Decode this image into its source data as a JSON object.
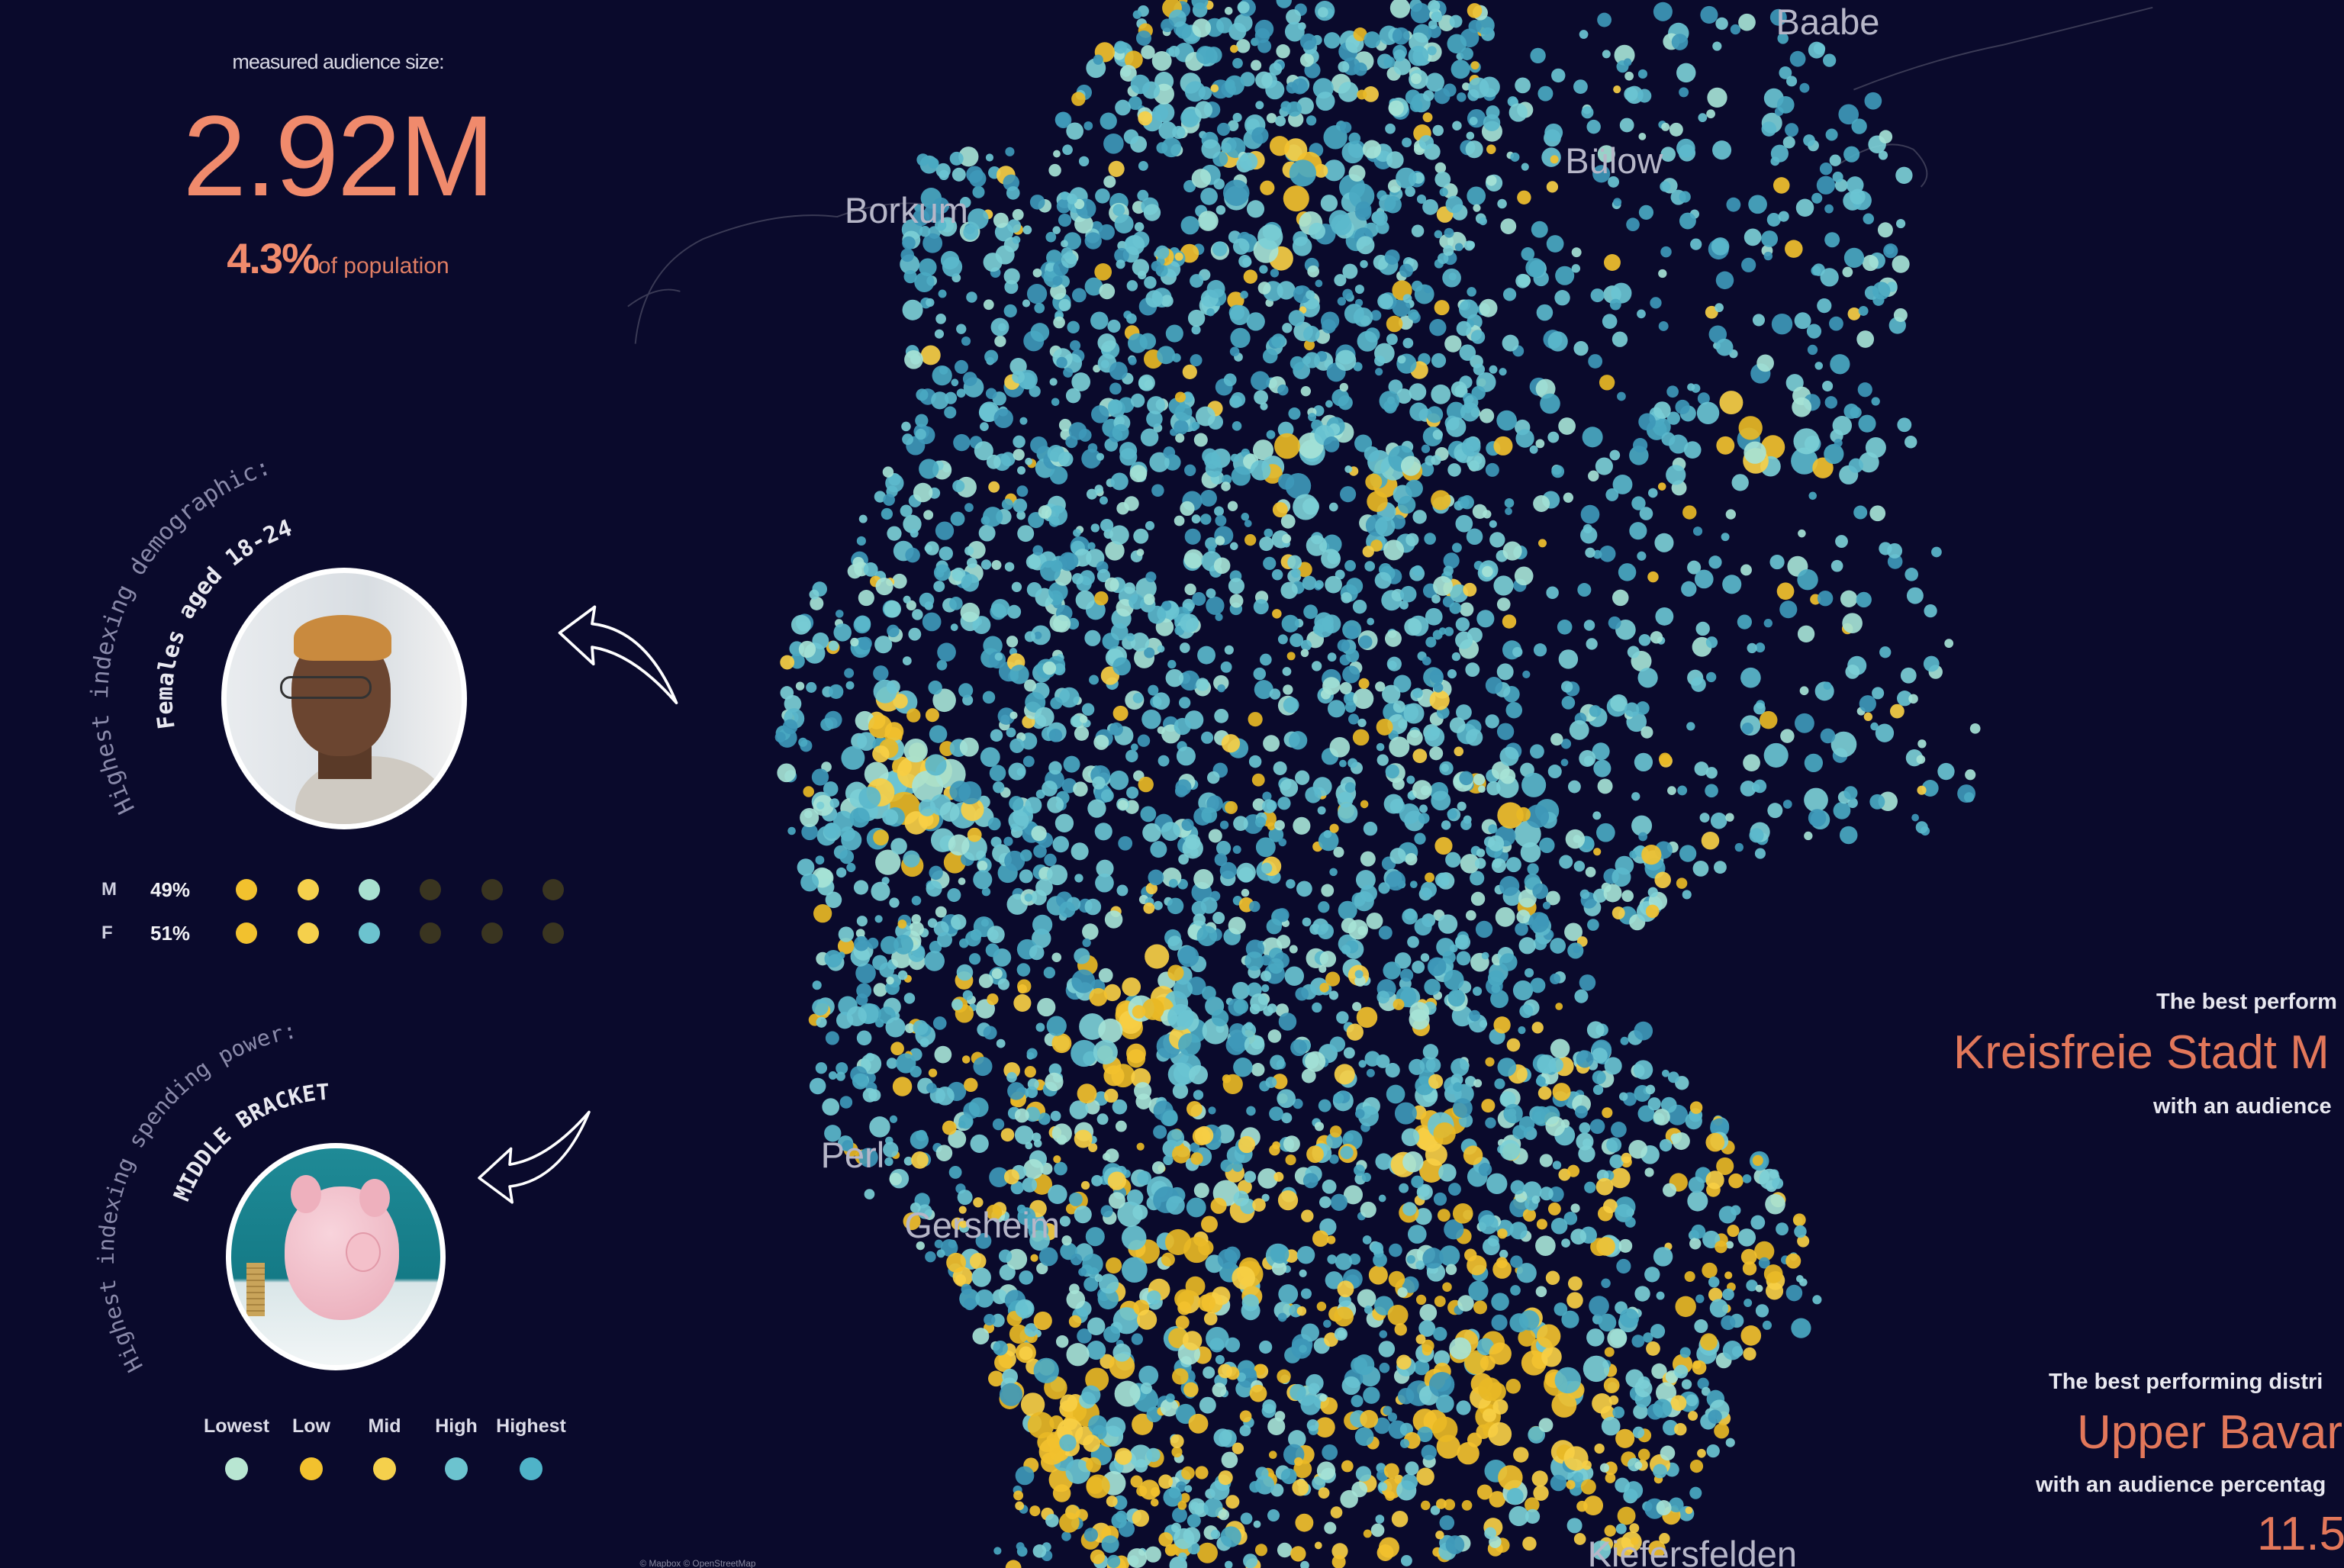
{
  "colors": {
    "background": "#0a0a2c",
    "accent": "#f08a6c",
    "teal": "#5bb8cc",
    "yellow": "#f2c12e"
  },
  "audience": {
    "label": "measured audience size:",
    "value": "2.92M",
    "pct": "4.3%",
    "pct_suffix": "of population"
  },
  "demographic": {
    "heading": "Highest indexing demographic:",
    "value": "Females aged 18-24",
    "photo_icon": "person-photo",
    "arrow_icon": "curved-arrow-up-left",
    "rows": [
      {
        "label": "M",
        "pct": "49%",
        "dots": [
          "#f2c12e",
          "#f5d04c",
          "#a8e0d0",
          "#3a3520",
          "#3a3520",
          "#3a3520"
        ]
      },
      {
        "label": "F",
        "pct": "51%",
        "dots": [
          "#f2c12e",
          "#f5d04c",
          "#6cc3cf",
          "#3a3520",
          "#3a3520",
          "#3a3520"
        ]
      }
    ]
  },
  "spending": {
    "heading": "Highest indexing spending power:",
    "value": "MIDDLE BRACKET",
    "photo_icon": "piggy-bank-photo",
    "arrow_icon": "curved-arrow-down-left",
    "legend": [
      {
        "label": "Lowest",
        "color": "#b8e6d2"
      },
      {
        "label": "Low",
        "color": "#f2c12e"
      },
      {
        "label": "Mid",
        "color": "#f5d04c"
      },
      {
        "label": "High",
        "color": "#6cc3cf"
      },
      {
        "label": "Highest",
        "color": "#4fb3c8"
      }
    ]
  },
  "best_city": {
    "intro": "The best perform",
    "name": "Kreisfreie Stadt M",
    "outro": "with an audience"
  },
  "best_district": {
    "intro": "The best performing distri",
    "name": "Upper Bavar",
    "outro": "with an audience percentag",
    "value": "11.5"
  },
  "map": {
    "place_labels": [
      "Borkum",
      "Bülow",
      "Baabe",
      "Perl",
      "Gersheim",
      "Kiefersfelden"
    ],
    "attribution": "© Mapbox © OpenStreetMap",
    "dot_colors": {
      "teal": [
        "#5bb8cc",
        "#4aa9c2",
        "#7ccfd6",
        "#a6e3d6",
        "#3e98b8",
        "#6ac4d2"
      ],
      "yellow": [
        "#f2c12e",
        "#f7cf45",
        "#e8b825"
      ]
    }
  }
}
